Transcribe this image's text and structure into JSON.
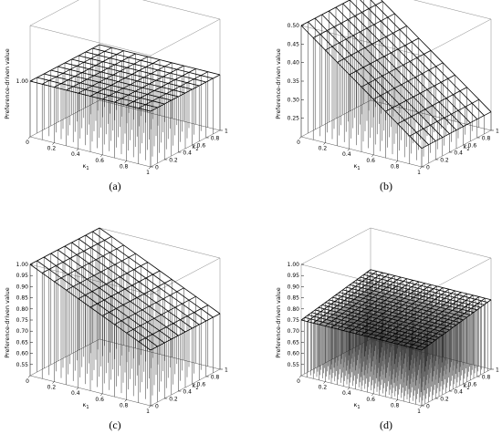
{
  "figure_labels": [
    "(a)",
    "(b)",
    "(c)",
    "(d)"
  ],
  "chart_data": [
    {
      "type": "surface3d",
      "label": "(a)",
      "zlabel": "Preference-driven value",
      "xlabel": "κ1",
      "ylabel": "κ2",
      "x_ticks": [
        "0",
        "0.2",
        "0.4",
        "0.6",
        "0.8",
        "1"
      ],
      "y_ticks": [
        "0",
        "0.2",
        "0.4",
        "0.6",
        "0.8",
        "1"
      ],
      "z_ticks": [
        "1.00"
      ],
      "zlim": [
        0.95,
        1.05
      ],
      "grid_n": 11,
      "surface": {
        "base": 1.0,
        "dx": 0.0,
        "dy": 0.0
      }
    },
    {
      "type": "surface3d",
      "label": "(b)",
      "zlabel": "Preference-driven value",
      "xlabel": "κ1",
      "ylabel": "κ2",
      "x_ticks": [
        "0",
        "0.2",
        "0.4",
        "0.6",
        "0.8",
        "1"
      ],
      "y_ticks": [
        "0",
        "0.2",
        "0.4",
        "0.6",
        "0.8",
        "1"
      ],
      "z_ticks": [
        "0.25",
        "0.30",
        "0.35",
        "0.40",
        "0.45",
        "0.50"
      ],
      "zlim": [
        0.2,
        0.5
      ],
      "grid_n": 11,
      "surface": {
        "base": 0.5,
        "dx": -0.25,
        "dy": 0.0
      }
    },
    {
      "type": "surface3d",
      "label": "(c)",
      "zlabel": "Preference-driven value",
      "xlabel": "κ1",
      "ylabel": "κ2",
      "x_ticks": [
        "0",
        "0.2",
        "0.4",
        "0.6",
        "0.8",
        "1"
      ],
      "y_ticks": [
        "0",
        "0.2",
        "0.4",
        "0.6",
        "0.8",
        "1"
      ],
      "z_ticks": [
        "0.55",
        "0.60",
        "0.65",
        "0.70",
        "0.75",
        "0.80",
        "0.85",
        "0.90",
        "0.95",
        "1.00"
      ],
      "zlim": [
        0.5,
        1.0
      ],
      "grid_n": 11,
      "surface": {
        "base": 1.0,
        "dx": -0.25,
        "dy": 0.0
      }
    },
    {
      "type": "surface3d",
      "label": "(d)",
      "zlabel": "Preference-driven value",
      "xlabel": "κ1",
      "ylabel": "κ2",
      "x_ticks": [
        "0",
        "0.2",
        "0.4",
        "0.6",
        "0.8",
        "1"
      ],
      "y_ticks": [
        "0",
        "0.2",
        "0.4",
        "0.6",
        "0.8",
        "1"
      ],
      "z_ticks": [
        "0.55",
        "0.60",
        "0.65",
        "0.70",
        "0.75",
        "0.80",
        "0.85",
        "0.90",
        "0.95",
        "1.00"
      ],
      "zlim": [
        0.5,
        1.0
      ],
      "grid_n": 21,
      "surface": {
        "base": 0.75,
        "dx": 0.0,
        "dy": 0.0625
      }
    }
  ]
}
